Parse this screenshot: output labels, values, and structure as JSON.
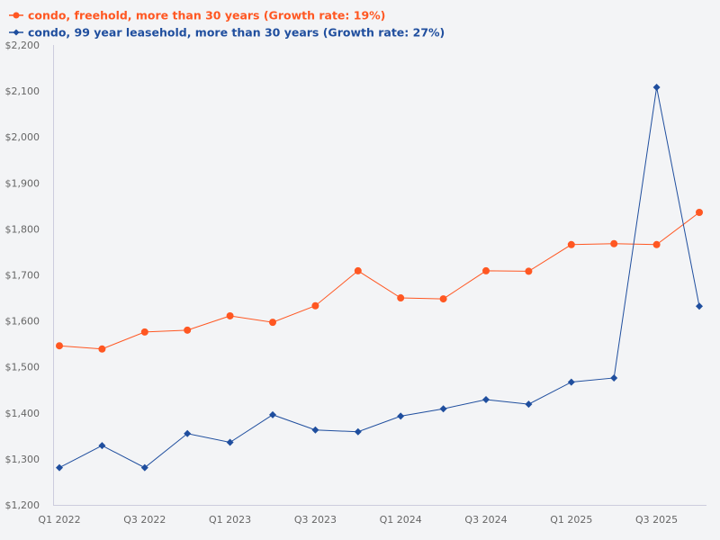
{
  "chart_data": {
    "type": "line",
    "title": "",
    "xlabel": "",
    "ylabel": "",
    "ylim": [
      1200,
      2200
    ],
    "yticks": [
      "$1,200",
      "$1,300",
      "$1,400",
      "$1,500",
      "$1,600",
      "$1,700",
      "$1,800",
      "$1,900",
      "$2,000",
      "$2,100",
      "$2,200"
    ],
    "ytick_values": [
      1200,
      1300,
      1400,
      1500,
      1600,
      1700,
      1800,
      1900,
      2000,
      2100,
      2200
    ],
    "categories": [
      "Q1 2022",
      "Q2 2022",
      "Q3 2022",
      "Q4 2022",
      "Q1 2023",
      "Q2 2023",
      "Q3 2023",
      "Q4 2023",
      "Q1 2024",
      "Q2 2024",
      "Q3 2024",
      "Q4 2024",
      "Q1 2025",
      "Q2 2025",
      "Q3 2025",
      "Q4 2025"
    ],
    "xtick_labels": [
      "Q1 2022",
      "Q3 2022",
      "Q1 2023",
      "Q3 2023",
      "Q1 2024",
      "Q3 2024",
      "Q1 2025",
      "Q3 2025"
    ],
    "grid": false,
    "legend_placement": "top-left",
    "series": [
      {
        "name": "condo, freehold, more than 30 years (Growth rate: 19%)",
        "color": "#ff5722",
        "marker": "circle",
        "values": [
          1546,
          1539,
          1576,
          1580,
          1611,
          1597,
          1633,
          1709,
          1650,
          1648,
          1709,
          1708,
          1766,
          1768,
          1766,
          1836
        ]
      },
      {
        "name": "condo, 99 year leasehold, more than 30 years (Growth rate: 27%)",
        "color": "#1f4e9e",
        "marker": "diamond",
        "values": [
          1281,
          1329,
          1281,
          1355,
          1336,
          1396,
          1363,
          1359,
          1393,
          1409,
          1429,
          1419,
          1467,
          1476,
          2108,
          1632
        ]
      }
    ]
  }
}
